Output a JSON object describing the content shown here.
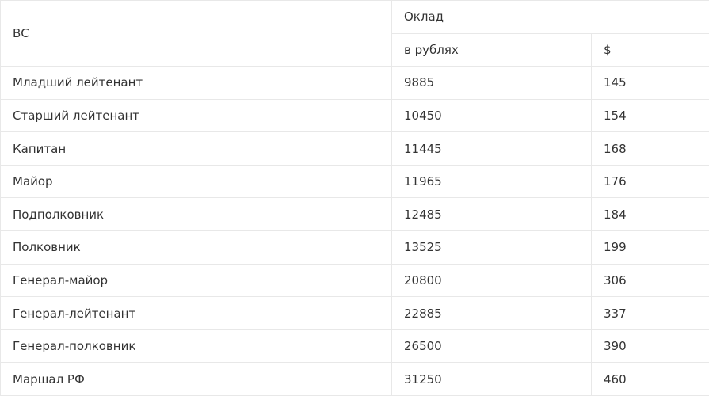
{
  "table": {
    "header": {
      "rank": "ВС",
      "salary": "Оклад",
      "rub": "в рублях",
      "usd": "$"
    },
    "rows": [
      [
        "Младший лейтенант",
        9885,
        145
      ],
      [
        "Старший лейтенант",
        10450,
        154
      ],
      [
        "Капитан",
        11445,
        168
      ],
      [
        "Майор",
        11965,
        176
      ],
      [
        "Подполковник",
        12485,
        184
      ],
      [
        "Полковник",
        13525,
        199
      ],
      [
        "Генерал-майор",
        20800,
        306
      ],
      [
        "Генерал-лейтенант",
        22885,
        337
      ],
      [
        "Генерал-полковник",
        26500,
        390
      ],
      [
        "Маршал РФ",
        31250,
        460
      ]
    ]
  }
}
